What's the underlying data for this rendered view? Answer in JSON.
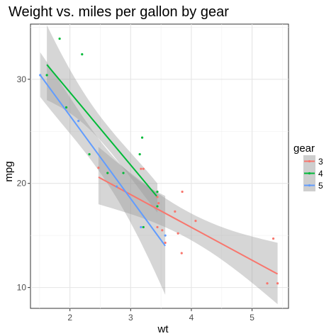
{
  "chart_data": {
    "type": "scatter",
    "title": "Weight vs. miles per gallon by gear",
    "xlabel": "wt",
    "ylabel": "mpg",
    "xlim": [
      1.35,
      5.6
    ],
    "ylim": [
      8.0,
      35.3
    ],
    "x_ticks": [
      2,
      3,
      4,
      5
    ],
    "y_ticks": [
      10,
      20,
      30
    ],
    "grid": true,
    "legend": {
      "title": "gear",
      "position": "right",
      "entries": [
        {
          "label": "3",
          "color": "#F8766D"
        },
        {
          "label": "4",
          "color": "#00BA38"
        },
        {
          "label": "5",
          "color": "#619CFF"
        }
      ]
    },
    "series": [
      {
        "name": "3",
        "color": "#F8766D",
        "points": [
          [
            2.47,
            21.5
          ],
          [
            2.62,
            21.0
          ],
          [
            3.17,
            21.4
          ],
          [
            3.21,
            21.4
          ],
          [
            3.44,
            18.7
          ],
          [
            3.46,
            18.1
          ],
          [
            3.52,
            15.5
          ],
          [
            3.57,
            14.3
          ],
          [
            3.78,
            15.2
          ],
          [
            3.73,
            17.3
          ],
          [
            3.84,
            13.3
          ],
          [
            3.85,
            19.2
          ],
          [
            3.44,
            15.8
          ],
          [
            4.07,
            16.4
          ],
          [
            5.25,
            10.4
          ],
          [
            5.42,
            10.4
          ],
          [
            5.35,
            14.7
          ]
        ],
        "fit": {
          "x": [
            2.47,
            5.42
          ],
          "y": [
            20.6,
            11.3
          ]
        },
        "band": {
          "x": [
            2.47,
            5.42
          ],
          "upper": [
            23.5,
            14.3
          ],
          "lower": [
            18.0,
            8.4
          ]
        }
      },
      {
        "name": "4",
        "color": "#00BA38",
        "points": [
          [
            1.62,
            30.4
          ],
          [
            1.83,
            33.9
          ],
          [
            2.2,
            32.4
          ],
          [
            1.94,
            27.3
          ],
          [
            2.32,
            22.8
          ],
          [
            2.62,
            21.0
          ],
          [
            2.88,
            21.0
          ],
          [
            3.15,
            22.8
          ],
          [
            3.19,
            24.4
          ],
          [
            3.44,
            19.2
          ],
          [
            3.44,
            17.8
          ],
          [
            3.21,
            15.8
          ]
        ],
        "fit": {
          "x": [
            1.62,
            3.44
          ],
          "y": [
            31.4,
            18.7
          ]
        },
        "band": {
          "x": [
            1.62,
            3.44
          ],
          "upper": [
            35.2,
            20.0
          ],
          "lower": [
            28.0,
            17.2
          ]
        }
      },
      {
        "name": "5",
        "color": "#619CFF",
        "points": [
          [
            1.51,
            30.4
          ],
          [
            2.14,
            26.0
          ],
          [
            3.17,
            15.8
          ],
          [
            2.77,
            19.7
          ],
          [
            3.57,
            15.0
          ]
        ],
        "fit": {
          "x": [
            1.51,
            3.57
          ],
          "y": [
            30.4,
            14.0
          ]
        },
        "band": {
          "x": [
            1.51,
            3.57
          ],
          "upper": [
            32.6,
            18.8
          ],
          "lower": [
            28.3,
            9.3
          ]
        }
      }
    ]
  }
}
